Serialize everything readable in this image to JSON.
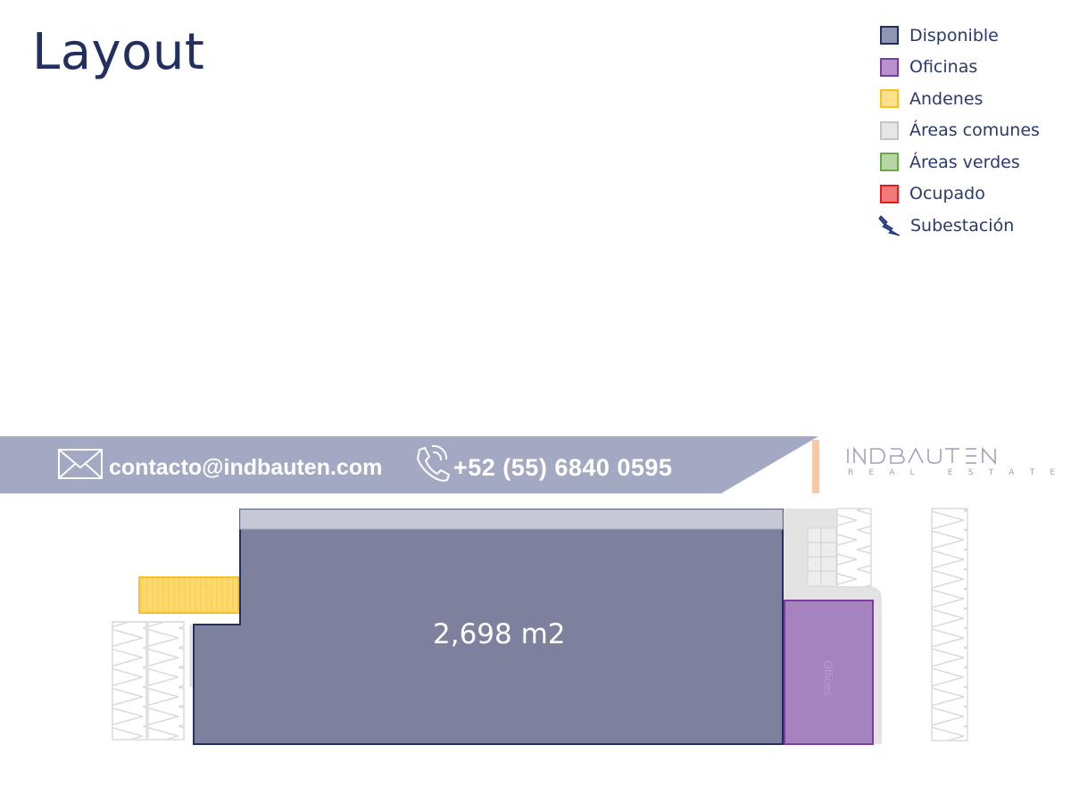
{
  "title": "Layout",
  "legend": [
    {
      "label": "Disponible",
      "fill": "#8f96b4",
      "stroke": "#23305f",
      "icon": "swatch"
    },
    {
      "label": "Oficinas",
      "fill": "#b892cf",
      "stroke": "#7d3d9f",
      "icon": "swatch"
    },
    {
      "label": "Andenes",
      "fill": "#ffe08a",
      "stroke": "#f3c12a",
      "icon": "swatch"
    },
    {
      "label": "Áreas comunes",
      "fill": "#e6e6e6",
      "stroke": "#c4c4c4",
      "icon": "swatch"
    },
    {
      "label": "Áreas verdes",
      "fill": "#b6d7a3",
      "stroke": "#6aa94b",
      "icon": "swatch"
    },
    {
      "label": "Ocupado",
      "fill": "#f47a7a",
      "stroke": "#e31b1b",
      "icon": "swatch"
    },
    {
      "label": "Subestación",
      "icon": "lightning-icon"
    }
  ],
  "contact": {
    "email": "contacto@indbauten.com",
    "phone": "+52 (55) 6840 0595"
  },
  "logo": {
    "name": "INDBAUTEN",
    "subtitle": [
      "R",
      "E",
      "A",
      "L",
      "E",
      "S",
      "T",
      "A",
      "T",
      "E"
    ]
  },
  "plan": {
    "available_area": "2,698 m2",
    "offices_label": "Offices"
  },
  "colors": {
    "available": "#7e819d",
    "offices": "#a483bf",
    "docks": "#ffd870",
    "banner": "#a4a9c3",
    "title": "#23305f"
  }
}
